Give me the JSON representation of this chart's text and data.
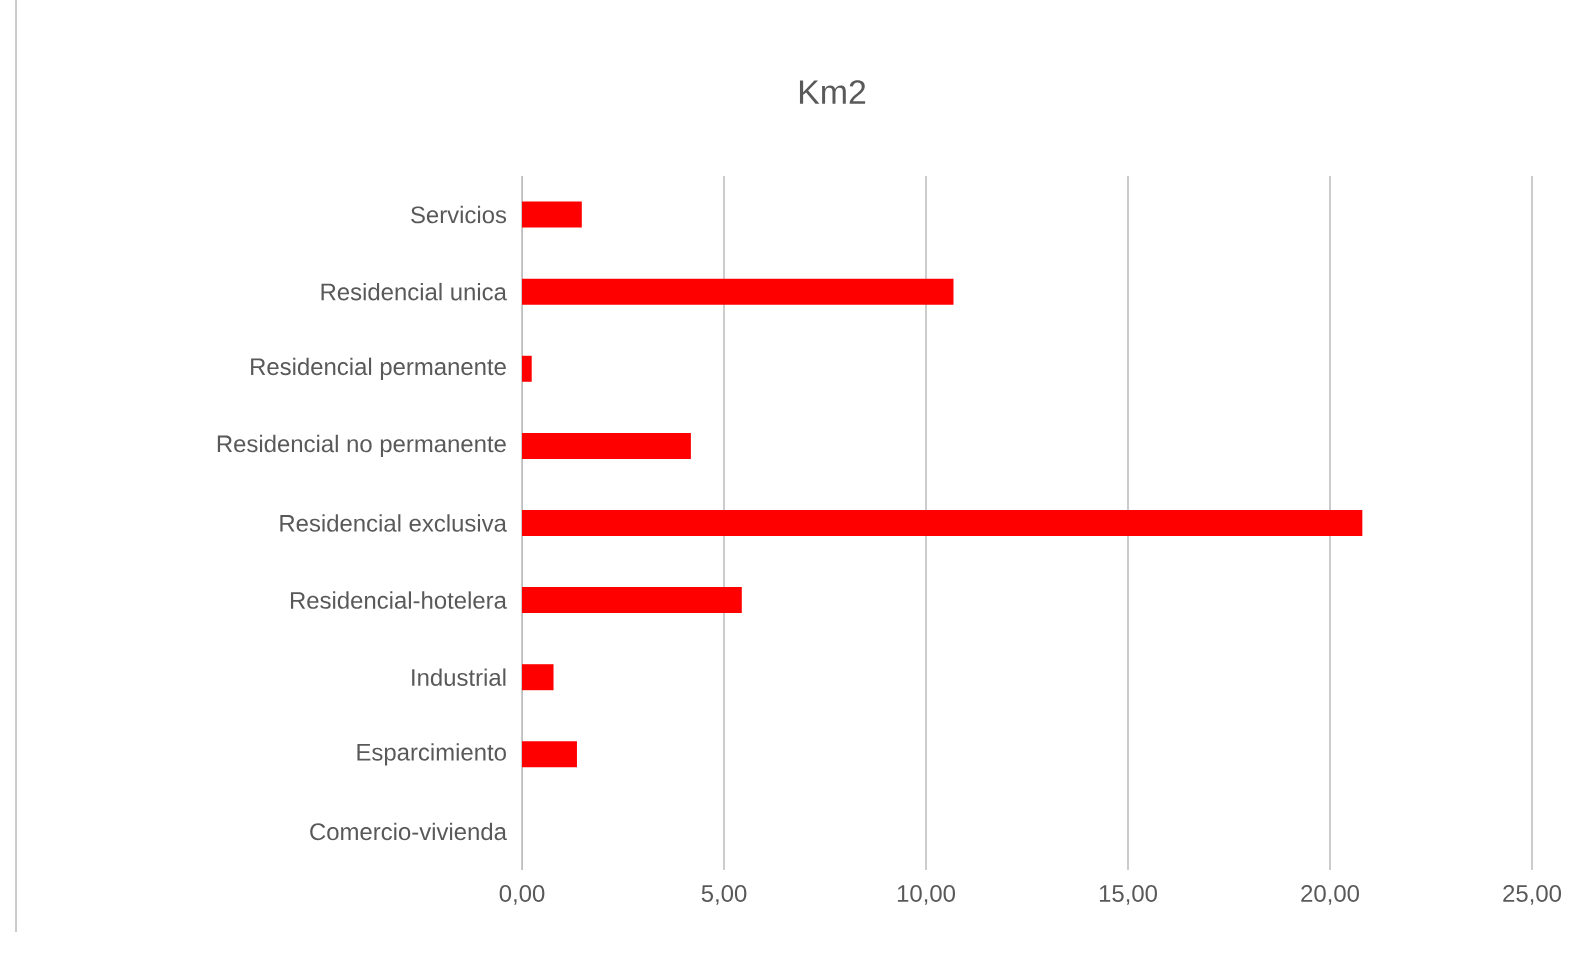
{
  "chart_data": {
    "type": "bar",
    "orientation": "horizontal",
    "title": "Km2",
    "categories": [
      "Servicios",
      "Residencial unica",
      "Residencial permanente",
      "Residencial no permanente",
      "Residencial exclusiva",
      "Residencial-hotelera",
      "Industrial",
      "Esparcimiento",
      "Comercio-vivienda"
    ],
    "values": [
      1.48,
      10.68,
      0.24,
      4.18,
      20.8,
      5.44,
      0.78,
      1.36,
      0
    ],
    "color": "#ff0000",
    "xlim": [
      0,
      25
    ],
    "xticks": [
      {
        "value": 0,
        "label": "0,00"
      },
      {
        "value": 5,
        "label": "5,00"
      },
      {
        "value": 10,
        "label": "10,00"
      },
      {
        "value": 15,
        "label": "15,00"
      },
      {
        "value": 20,
        "label": "20,00"
      },
      {
        "value": 25,
        "label": "25,00"
      }
    ],
    "grid": "x"
  }
}
